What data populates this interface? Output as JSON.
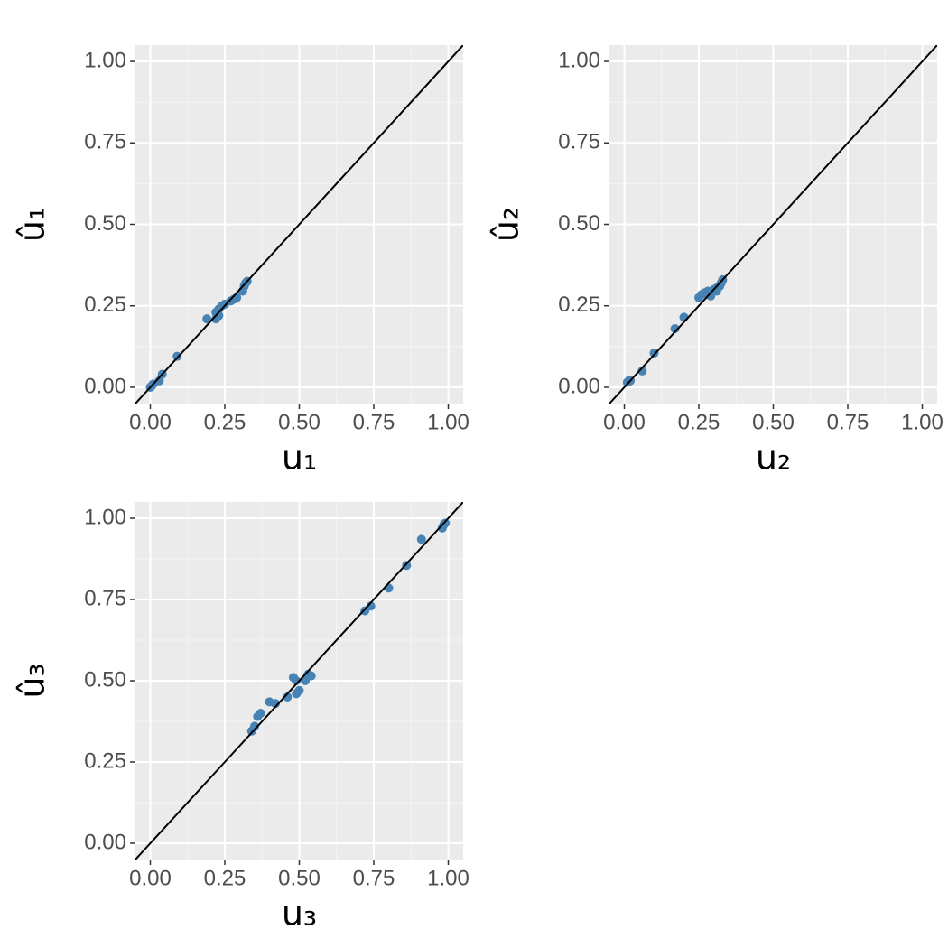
{
  "chart_data": [
    {
      "type": "scatter",
      "xlabel": "u₁",
      "ylabel": "û₁",
      "color": "#4682B4",
      "diagonal": true,
      "grid": true,
      "x": [
        0.0,
        0.005,
        0.01,
        0.03,
        0.04,
        0.09,
        0.19,
        0.22,
        0.22,
        0.23,
        0.23,
        0.24,
        0.25,
        0.27,
        0.28,
        0.29,
        0.31,
        0.315,
        0.32,
        0.325
      ],
      "values": [
        0.0,
        0.005,
        0.01,
        0.02,
        0.04,
        0.095,
        0.21,
        0.23,
        0.21,
        0.24,
        0.22,
        0.25,
        0.255,
        0.265,
        0.27,
        0.275,
        0.295,
        0.31,
        0.32,
        0.325
      ],
      "xlim": [
        -0.05,
        1.05
      ],
      "ylim": [
        -0.05,
        1.05
      ],
      "xticks": [
        {
          "value": 0,
          "label": "0.00"
        },
        {
          "value": 0.25,
          "label": "0.25"
        },
        {
          "value": 0.5,
          "label": "0.50"
        },
        {
          "value": 0.75,
          "label": "0.75"
        },
        {
          "value": 1,
          "label": "1.00"
        }
      ],
      "yticks": [
        {
          "value": 0,
          "label": "0.00"
        },
        {
          "value": 0.25,
          "label": "0.25"
        },
        {
          "value": 0.5,
          "label": "0.50"
        },
        {
          "value": 0.75,
          "label": "0.75"
        },
        {
          "value": 1,
          "label": "1.00"
        }
      ]
    },
    {
      "type": "scatter",
      "xlabel": "u₂",
      "ylabel": "û₂",
      "color": "#4682B4",
      "diagonal": true,
      "grid": true,
      "x": [
        0.01,
        0.015,
        0.02,
        0.06,
        0.1,
        0.17,
        0.2,
        0.25,
        0.26,
        0.27,
        0.28,
        0.29,
        0.3,
        0.31,
        0.31,
        0.32,
        0.325,
        0.33
      ],
      "values": [
        0.015,
        0.02,
        0.02,
        0.05,
        0.105,
        0.18,
        0.215,
        0.275,
        0.285,
        0.29,
        0.295,
        0.28,
        0.3,
        0.295,
        0.305,
        0.31,
        0.32,
        0.33
      ],
      "xlim": [
        -0.05,
        1.05
      ],
      "ylim": [
        -0.05,
        1.05
      ],
      "xticks": [
        {
          "value": 0,
          "label": "0.00"
        },
        {
          "value": 0.25,
          "label": "0.25"
        },
        {
          "value": 0.5,
          "label": "0.50"
        },
        {
          "value": 0.75,
          "label": "0.75"
        },
        {
          "value": 1,
          "label": "1.00"
        }
      ],
      "yticks": [
        {
          "value": 0,
          "label": "0.00"
        },
        {
          "value": 0.25,
          "label": "0.25"
        },
        {
          "value": 0.5,
          "label": "0.50"
        },
        {
          "value": 0.75,
          "label": "0.75"
        },
        {
          "value": 1,
          "label": "1.00"
        }
      ]
    },
    {
      "type": "scatter",
      "xlabel": "u₃",
      "ylabel": "û₃",
      "color": "#4682B4",
      "diagonal": true,
      "grid": true,
      "x": [
        0.34,
        0.35,
        0.36,
        0.37,
        0.4,
        0.42,
        0.46,
        0.48,
        0.49,
        0.49,
        0.5,
        0.52,
        0.53,
        0.54,
        0.72,
        0.74,
        0.8,
        0.86,
        0.91,
        0.98,
        0.985,
        0.99
      ],
      "values": [
        0.345,
        0.36,
        0.39,
        0.4,
        0.435,
        0.43,
        0.45,
        0.51,
        0.5,
        0.46,
        0.47,
        0.5,
        0.52,
        0.515,
        0.715,
        0.73,
        0.785,
        0.855,
        0.935,
        0.97,
        0.98,
        0.985
      ],
      "xlim": [
        -0.05,
        1.05
      ],
      "ylim": [
        -0.05,
        1.05
      ],
      "xticks": [
        {
          "value": 0,
          "label": "0.00"
        },
        {
          "value": 0.25,
          "label": "0.25"
        },
        {
          "value": 0.5,
          "label": "0.50"
        },
        {
          "value": 0.75,
          "label": "0.75"
        },
        {
          "value": 1,
          "label": "1.00"
        }
      ],
      "yticks": [
        {
          "value": 0,
          "label": "0.00"
        },
        {
          "value": 0.25,
          "label": "0.25"
        },
        {
          "value": 0.5,
          "label": "0.50"
        },
        {
          "value": 0.75,
          "label": "0.75"
        },
        {
          "value": 1,
          "label": "1.00"
        }
      ]
    }
  ]
}
